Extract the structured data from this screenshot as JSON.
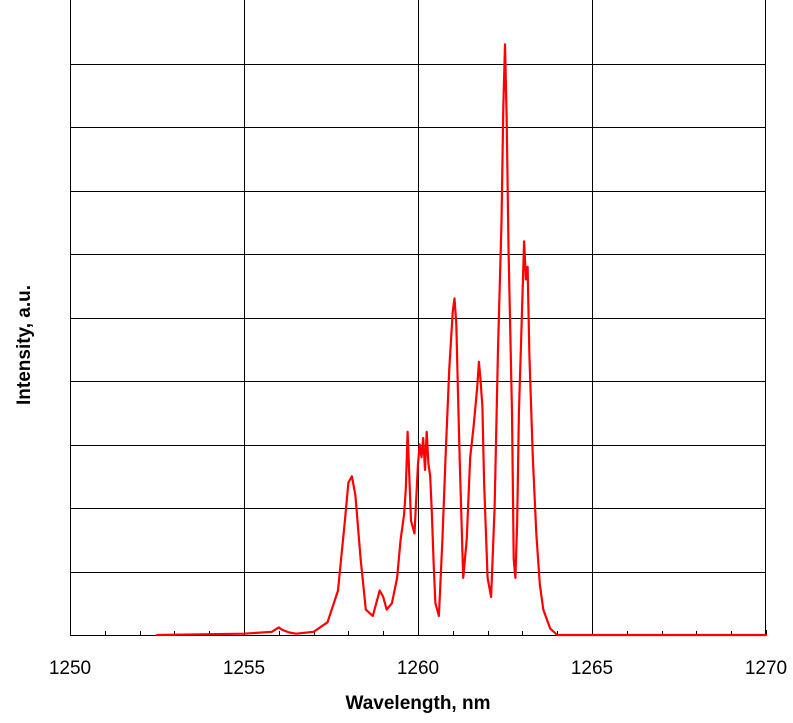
{
  "chart_data": {
    "type": "line",
    "title": "",
    "xlabel": "Wavelength, nm",
    "ylabel": "Intensity, a.u.",
    "xlim": [
      1250,
      1270
    ],
    "ylim": [
      0,
      10
    ],
    "x_ticks": [
      1250,
      1255,
      1260,
      1265,
      1270
    ],
    "x_tick_labels": [
      "1250",
      "1255",
      "1260",
      "1265",
      "1270"
    ],
    "y_gridlines": [
      1,
      2,
      3,
      4,
      5,
      6,
      7,
      8,
      9
    ],
    "y_tick_labels_shown": false,
    "grid": true,
    "legend": "none",
    "series": [
      {
        "color": "#ff0000",
        "x": [
          1252.5,
          1255.0,
          1255.8,
          1256.0,
          1256.1,
          1256.3,
          1256.5,
          1257.0,
          1257.4,
          1257.7,
          1257.9,
          1258.0,
          1258.1,
          1258.2,
          1258.35,
          1258.5,
          1258.7,
          1258.9,
          1259.0,
          1259.1,
          1259.25,
          1259.4,
          1259.5,
          1259.6,
          1259.65,
          1259.7,
          1259.75,
          1259.8,
          1259.9,
          1260.0,
          1260.05,
          1260.1,
          1260.15,
          1260.2,
          1260.25,
          1260.3,
          1260.35,
          1260.4,
          1260.45,
          1260.5,
          1260.6,
          1260.7,
          1260.8,
          1260.9,
          1261.0,
          1261.05,
          1261.1,
          1261.15,
          1261.2,
          1261.3,
          1261.4,
          1261.5,
          1261.6,
          1261.7,
          1261.75,
          1261.8,
          1261.85,
          1261.9,
          1262.0,
          1262.1,
          1262.2,
          1262.3,
          1262.4,
          1262.45,
          1262.5,
          1262.55,
          1262.6,
          1262.7,
          1262.75,
          1262.8,
          1262.85,
          1262.9,
          1263.0,
          1263.05,
          1263.1,
          1263.15,
          1263.2,
          1263.3,
          1263.4,
          1263.5,
          1263.6,
          1263.8,
          1264.0,
          1266.0,
          1270.0
        ],
        "y": [
          0.0,
          0.02,
          0.05,
          0.12,
          0.08,
          0.04,
          0.02,
          0.05,
          0.2,
          0.7,
          1.8,
          2.4,
          2.5,
          2.2,
          1.2,
          0.4,
          0.3,
          0.7,
          0.6,
          0.4,
          0.5,
          0.9,
          1.5,
          1.9,
          2.3,
          3.2,
          2.5,
          1.8,
          1.6,
          2.7,
          3.0,
          2.8,
          3.1,
          2.6,
          3.2,
          2.7,
          2.5,
          1.9,
          1.1,
          0.5,
          0.3,
          1.5,
          2.9,
          4.2,
          5.1,
          5.3,
          4.9,
          3.8,
          2.7,
          0.9,
          1.5,
          2.8,
          3.3,
          3.9,
          4.3,
          4.0,
          3.6,
          2.4,
          0.9,
          0.6,
          2.0,
          4.5,
          6.5,
          8.3,
          9.3,
          8.1,
          6.1,
          3.5,
          1.2,
          0.9,
          1.8,
          3.5,
          5.3,
          6.2,
          5.6,
          5.8,
          4.4,
          2.8,
          1.6,
          0.8,
          0.4,
          0.1,
          0.0,
          0.0,
          0.0
        ]
      }
    ]
  }
}
